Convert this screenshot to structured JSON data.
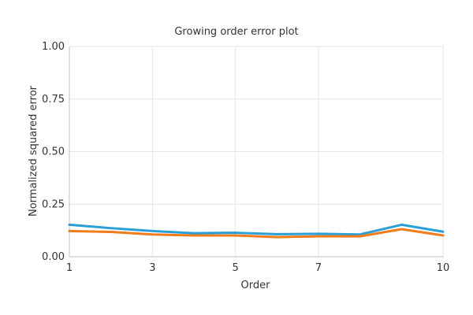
{
  "chart_data": {
    "type": "line",
    "title": "Growing order error plot",
    "xlabel": "Order",
    "ylabel": "Normalized squared error",
    "xlim": [
      1,
      10
    ],
    "ylim": [
      0,
      1
    ],
    "x_ticks": [
      1,
      3,
      5,
      7,
      10
    ],
    "x_tick_labels": [
      "1",
      "3",
      "5",
      "7",
      "10"
    ],
    "y_ticks": [
      0,
      0.25,
      0.5,
      0.75,
      1
    ],
    "y_tick_labels": [
      "0.00",
      "0.25",
      "0.50",
      "0.75",
      "1.00"
    ],
    "grid": true,
    "legend": "none",
    "series": [
      {
        "color": "#2a9fd6",
        "x": [
          1,
          2,
          3,
          4,
          5,
          6,
          7,
          8,
          9,
          10
        ],
        "values": [
          0.152,
          0.136,
          0.122,
          0.112,
          0.114,
          0.107,
          0.109,
          0.106,
          0.152,
          0.119
        ]
      },
      {
        "color": "#f07c1b",
        "x": [
          1,
          2,
          3,
          4,
          5,
          6,
          7,
          8,
          9,
          10
        ],
        "values": [
          0.122,
          0.118,
          0.106,
          0.101,
          0.101,
          0.093,
          0.097,
          0.097,
          0.131,
          0.101
        ]
      }
    ]
  }
}
